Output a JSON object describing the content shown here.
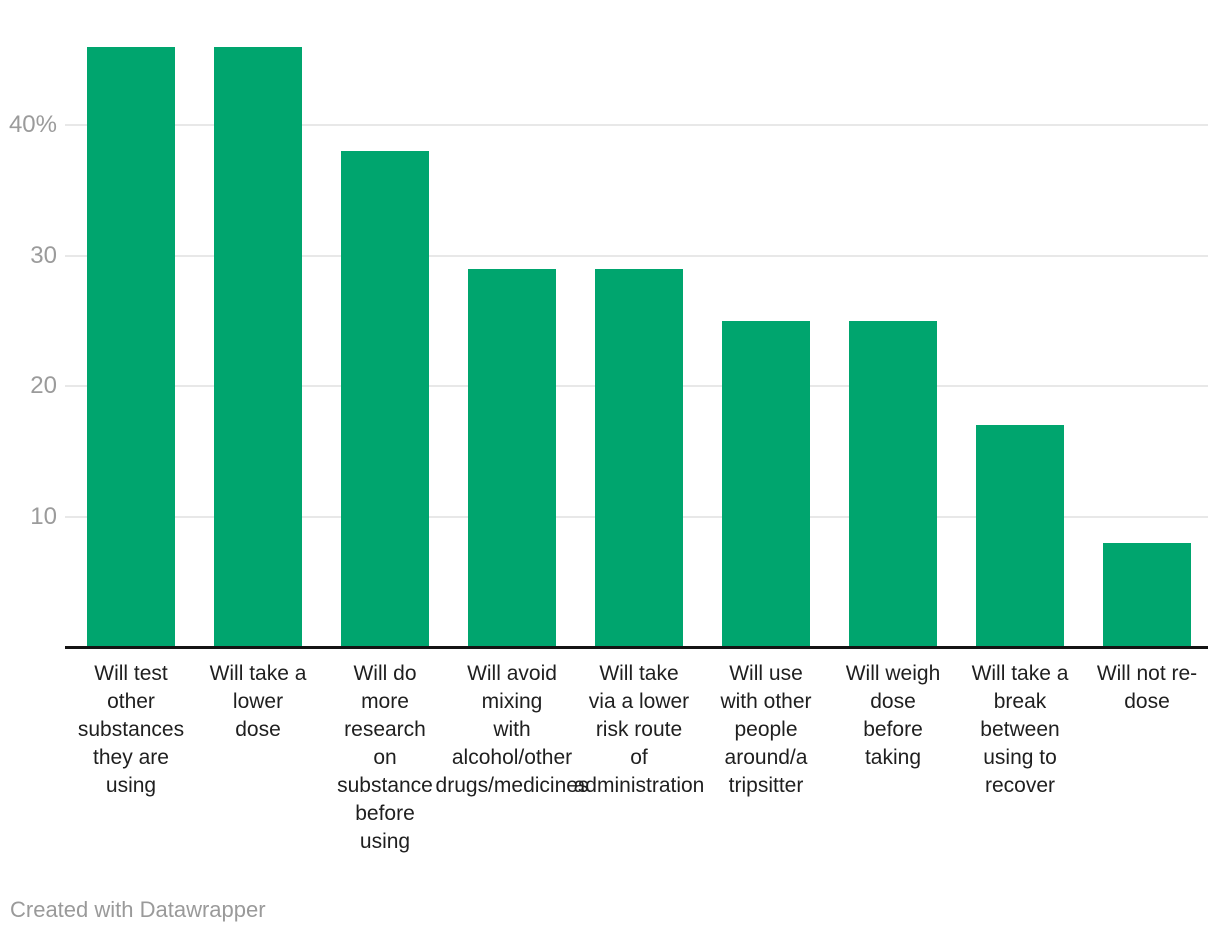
{
  "chart_data": {
    "type": "bar",
    "title": "",
    "categories": [
      "Will test other substances they are using",
      "Will take a lower dose",
      "Will do more research on substance before using",
      "Will avoid mixing with alcohol/other drugs/medicines",
      "Will take via a lower risk route of administration",
      "Will use with other people around/a tripsitter",
      "Will weigh dose before taking",
      "Will take a break between using to recover",
      "Will not re-dose"
    ],
    "values": [
      46,
      46,
      38,
      29,
      29,
      25,
      25,
      17,
      8
    ],
    "unit": "%",
    "xlabel": "",
    "ylabel": "",
    "ylim": [
      0,
      47
    ],
    "grid": "horizontal",
    "legend": "none",
    "bar_color": "#00a56e",
    "gridline_color": "#e8e8e8",
    "axis_line_color": "#141414",
    "tick_label_color": "#9b9b9b",
    "category_label_color": "#1f1f1f",
    "y_ticks": [
      {
        "value": 10,
        "label": "10"
      },
      {
        "value": 20,
        "label": "20"
      },
      {
        "value": 30,
        "label": "30"
      },
      {
        "value": 40,
        "label": "40%"
      }
    ],
    "category_label_lines": [
      [
        "Will test",
        "other",
        "substances",
        "they are",
        "using"
      ],
      [
        "Will take a",
        "lower",
        "dose"
      ],
      [
        "Will do",
        "more",
        "research",
        "on",
        "substance",
        "before",
        "using"
      ],
      [
        "Will avoid",
        "mixing",
        "with",
        "alcohol/other",
        "drugs/medicines"
      ],
      [
        "Will take",
        "via a lower",
        "risk route",
        "of",
        "administration"
      ],
      [
        "Will use",
        "with other",
        "people",
        "around/a",
        "tripsitter"
      ],
      [
        "Will weigh",
        "dose",
        "before",
        "taking"
      ],
      [
        "Will take a",
        "break",
        "between",
        "using to",
        "recover"
      ],
      [
        "Will not re-",
        "dose"
      ]
    ]
  },
  "footer": {
    "credit": "Created with Datawrapper"
  }
}
